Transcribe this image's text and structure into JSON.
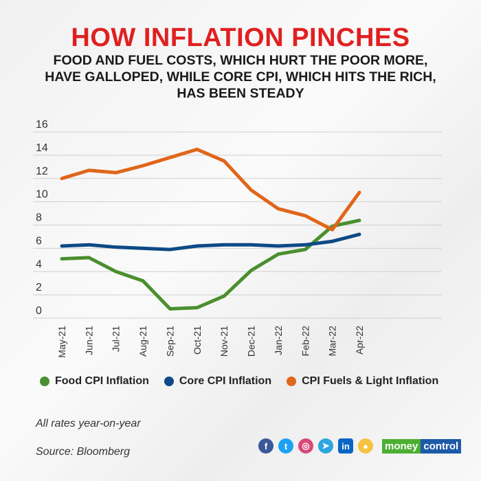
{
  "title": "HOW INFLATION PINCHES",
  "subtitle": "FOOD AND FUEL COSTS, WHICH HURT THE POOR MORE, HAVE GALLOPED, WHILE CORE CPI, WHICH HITS THE RICH, HAS BEEN STEADY",
  "chart_data": {
    "type": "line",
    "title": "HOW INFLATION PINCHES",
    "categories": [
      "May-21",
      "Jun-21",
      "Jul-21",
      "Aug-21",
      "Sep-21",
      "Oct-21",
      "Nov-21",
      "Dec-21",
      "Jan-22",
      "Feb-22",
      "Mar-22",
      "Apr-22"
    ],
    "yticks": [
      "0",
      "2",
      "4",
      "6",
      "8",
      "10",
      "12",
      "14",
      "16"
    ],
    "ylim": [
      0,
      16
    ],
    "grid": true,
    "legend": "bottom",
    "series": [
      {
        "name": "Food CPI Inflation",
        "color": "#4a8f2f",
        "values": [
          5.1,
          5.2,
          4.0,
          3.2,
          0.8,
          0.9,
          1.9,
          4.1,
          5.5,
          5.9,
          7.9,
          8.4
        ]
      },
      {
        "name": "Core CPI Inflation",
        "color": "#0d4a86",
        "values": [
          6.2,
          6.3,
          6.1,
          6.0,
          5.9,
          6.2,
          6.3,
          6.3,
          6.2,
          6.3,
          6.6,
          7.2
        ]
      },
      {
        "name": "CPI Fuels & Light Inflation",
        "color": "#e0661a",
        "values": [
          12.0,
          12.7,
          12.5,
          13.1,
          13.8,
          14.5,
          13.5,
          11.0,
          9.4,
          8.8,
          7.6,
          10.8
        ]
      }
    ]
  },
  "notes": {
    "basis": "All rates year-on-year",
    "source": "Source: Bloomberg"
  },
  "footer": {
    "social_icons": [
      {
        "name": "facebook-icon",
        "glyph": "f",
        "color": "#3b5998"
      },
      {
        "name": "twitter-icon",
        "glyph": "t",
        "color": "#1da1f2"
      },
      {
        "name": "instagram-icon",
        "glyph": "◎",
        "color": "#d9487a"
      },
      {
        "name": "telegram-icon",
        "glyph": "➤",
        "color": "#2ca5e0"
      },
      {
        "name": "linkedin-icon",
        "glyph": "in",
        "color": "#0a66c2"
      },
      {
        "name": "koo-icon",
        "glyph": "●",
        "color": "#f5c242"
      }
    ],
    "brand_a": "money",
    "brand_b": "control",
    "brand_a_color": "#4caf32",
    "brand_b_color": "#1d5aa8"
  }
}
